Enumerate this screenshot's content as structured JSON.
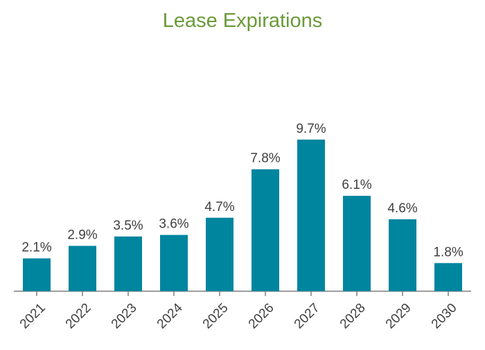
{
  "chart_data": {
    "type": "bar",
    "title": "Lease Expirations",
    "categories": [
      "2021",
      "2022",
      "2023",
      "2024",
      "2025",
      "2026",
      "2027",
      "2028",
      "2029",
      "2030"
    ],
    "values": [
      2.1,
      2.9,
      3.5,
      3.6,
      4.7,
      7.8,
      9.7,
      6.1,
      4.6,
      1.8
    ],
    "value_labels": [
      "2.1%",
      "2.9%",
      "3.5%",
      "3.6%",
      "4.7%",
      "7.8%",
      "9.7%",
      "6.1%",
      "4.6%",
      "1.8%"
    ],
    "ylim": [
      0,
      11
    ],
    "grid": false,
    "colors": {
      "bar": "#00859f",
      "title": "#6a9a3a",
      "text": "#404040",
      "axis": "#7f7f7f"
    }
  }
}
